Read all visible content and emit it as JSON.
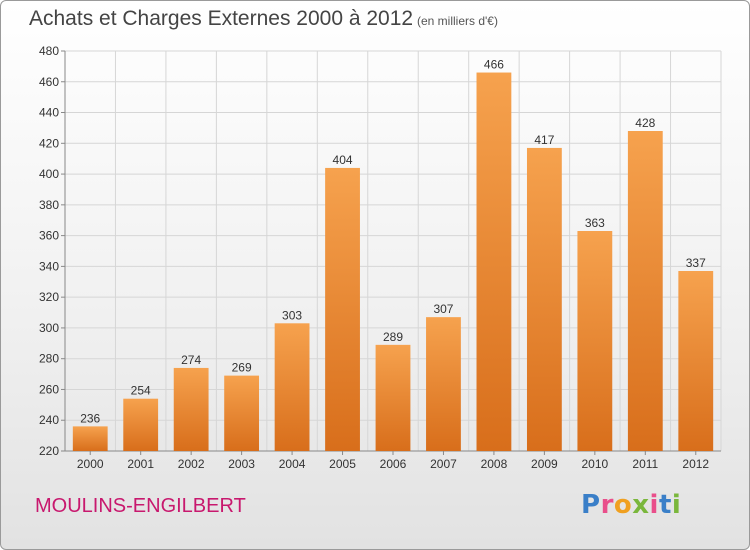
{
  "header": {
    "title": "Achats et Charges Externes 2000 à 2012",
    "unit": "(en milliers d'€)"
  },
  "footer": {
    "commune": "MOULINS-ENGILBERT",
    "logo": {
      "p": "P",
      "r": "r",
      "o": "o",
      "x": "x",
      "i1": "i",
      "t": "t",
      "i2": "i"
    }
  },
  "colors": {
    "bar_top": "#f6a24e",
    "bar_bottom": "#d86e1b",
    "title": "#444444",
    "commune": "#c8186e",
    "grid": "#d6d6d6"
  },
  "chart_data": {
    "type": "bar",
    "title": "Achats et Charges Externes 2000 à 2012",
    "subtitle": "(en milliers d'€)",
    "xlabel": "",
    "ylabel": "",
    "categories": [
      "2000",
      "2001",
      "2002",
      "2003",
      "2004",
      "2005",
      "2006",
      "2007",
      "2008",
      "2009",
      "2010",
      "2011",
      "2012"
    ],
    "values": [
      236,
      254,
      274,
      269,
      303,
      404,
      289,
      307,
      466,
      417,
      363,
      428,
      337
    ],
    "ylim": [
      220,
      480
    ],
    "yticks": [
      220,
      240,
      260,
      280,
      300,
      320,
      340,
      360,
      380,
      400,
      420,
      440,
      460,
      480
    ],
    "grid": true,
    "data_labels": true
  }
}
